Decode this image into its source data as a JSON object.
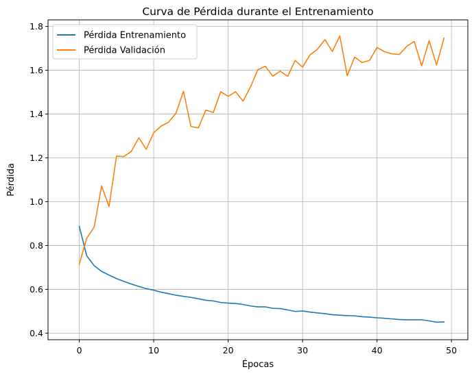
{
  "chart_data": {
    "type": "line",
    "title": "Curva de Pérdida durante el Entrenamiento",
    "xlabel": "Épocas",
    "ylabel": "Pérdida",
    "xlim": [
      -4.2,
      52.2
    ],
    "ylim": [
      0.37,
      1.83
    ],
    "xticks": [
      0,
      10,
      20,
      30,
      40,
      50
    ],
    "yticks": [
      0.4,
      0.6,
      0.8,
      1.0,
      1.2,
      1.4,
      1.6,
      1.8
    ],
    "xtick_labels": [
      "0",
      "10",
      "20",
      "30",
      "40",
      "50"
    ],
    "ytick_labels": [
      "0.4",
      "0.6",
      "0.8",
      "1.0",
      "1.2",
      "1.4",
      "1.6",
      "1.8"
    ],
    "grid": true,
    "legend_position": "top-left",
    "x": [
      0,
      1,
      2,
      3,
      4,
      5,
      6,
      7,
      8,
      9,
      10,
      11,
      12,
      13,
      14,
      15,
      16,
      17,
      18,
      19,
      20,
      21,
      22,
      23,
      24,
      25,
      26,
      27,
      28,
      29,
      30,
      31,
      32,
      33,
      34,
      35,
      36,
      37,
      38,
      39,
      40,
      41,
      42,
      43,
      44,
      45,
      46,
      47,
      48,
      49
    ],
    "series": [
      {
        "name": "Pérdida Entrenamiento",
        "color": "#1f77b4",
        "values": [
          0.887,
          0.753,
          0.708,
          0.682,
          0.665,
          0.649,
          0.636,
          0.624,
          0.613,
          0.603,
          0.596,
          0.587,
          0.58,
          0.573,
          0.568,
          0.563,
          0.557,
          0.55,
          0.547,
          0.54,
          0.537,
          0.535,
          0.531,
          0.524,
          0.52,
          0.52,
          0.513,
          0.512,
          0.506,
          0.499,
          0.501,
          0.496,
          0.492,
          0.489,
          0.484,
          0.482,
          0.48,
          0.479,
          0.475,
          0.473,
          0.47,
          0.468,
          0.465,
          0.462,
          0.461,
          0.461,
          0.461,
          0.456,
          0.45,
          0.451
        ]
      },
      {
        "name": "Pérdida Validación",
        "color": "#ff7f0e",
        "values": [
          0.714,
          0.833,
          0.884,
          1.072,
          0.978,
          1.208,
          1.206,
          1.23,
          1.292,
          1.239,
          1.315,
          1.345,
          1.363,
          1.405,
          1.504,
          1.343,
          1.337,
          1.418,
          1.407,
          1.502,
          1.481,
          1.502,
          1.459,
          1.524,
          1.603,
          1.618,
          1.573,
          1.596,
          1.572,
          1.645,
          1.614,
          1.67,
          1.696,
          1.74,
          1.686,
          1.757,
          1.575,
          1.66,
          1.635,
          1.645,
          1.704,
          1.685,
          1.675,
          1.672,
          1.709,
          1.732,
          1.62,
          1.735,
          1.624,
          1.747
        ]
      }
    ]
  }
}
